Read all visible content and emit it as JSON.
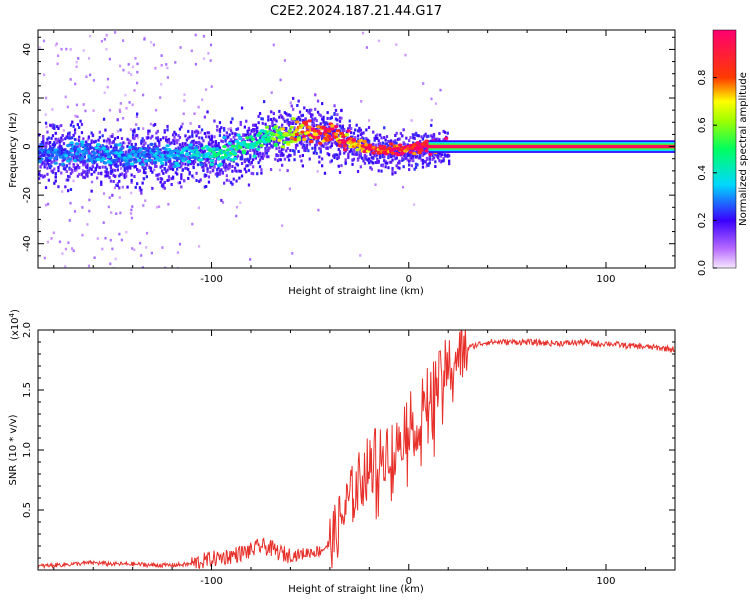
{
  "title": "C2E2.2024.187.21.44.G17",
  "chart_data": [
    {
      "type": "heatmap",
      "title": "C2E2.2024.187.21.44.G17",
      "xlabel": "Height of straight line (km)",
      "ylabel": "Frequency (Hz)",
      "xlim": [
        -188,
        135
      ],
      "ylim": [
        -50,
        48
      ],
      "x_ticks": [
        -100,
        0,
        100
      ],
      "y_ticks": [
        -40,
        -20,
        0,
        20,
        40
      ],
      "colorbar": {
        "label": "Normalized spectral amplitude",
        "range": [
          0.0,
          1.0
        ],
        "ticks": [
          0.0,
          0.2,
          0.4,
          0.6,
          0.8
        ]
      },
      "ridge": {
        "x": [
          -188,
          -170,
          -150,
          -130,
          -110,
          -100,
          -90,
          -80,
          -70,
          -60,
          -50,
          -40,
          -30,
          -20,
          -10,
          0,
          10,
          20,
          60,
          100,
          135
        ],
        "frequency": [
          -3,
          -2,
          -4,
          -3,
          -3,
          -3,
          -2,
          1,
          4,
          6,
          7,
          6,
          2,
          -1,
          -2,
          -1,
          0,
          0,
          0,
          0,
          0
        ],
        "amplitude": [
          0.25,
          0.3,
          0.3,
          0.3,
          0.35,
          0.4,
          0.45,
          0.45,
          0.5,
          0.7,
          0.85,
          0.9,
          0.85,
          0.9,
          0.95,
          0.95,
          0.97,
          0.98,
          0.98,
          0.98,
          0.98
        ]
      }
    },
    {
      "type": "line",
      "xlabel": "Height of straight line (km)",
      "ylabel": "SNR (10 * v/v)",
      "y_multiplier_label": "(x10",
      "y_multiplier_exp": "4",
      "y_multiplier_close": ")",
      "xlim": [
        -188,
        135
      ],
      "ylim": [
        0,
        20000
      ],
      "x_ticks": [
        -100,
        0,
        100
      ],
      "y_ticks": [
        5000,
        10000,
        15000,
        20000
      ],
      "y_tick_labels": [
        "0.5",
        "1.0",
        "1.5",
        "2.0"
      ],
      "color": "#e8302a",
      "series": [
        {
          "name": "SNR",
          "x": [
            -188,
            -180,
            -170,
            -160,
            -150,
            -140,
            -130,
            -120,
            -110,
            -100,
            -90,
            -80,
            -75,
            -70,
            -65,
            -60,
            -55,
            -50,
            -45,
            -40,
            -37,
            -35,
            -32,
            -30,
            -27,
            -25,
            -22,
            -20,
            -17,
            -15,
            -12,
            -10,
            -7,
            -5,
            -2,
            0,
            3,
            5,
            8,
            10,
            12,
            15,
            18,
            20,
            23,
            25,
            28,
            30,
            35,
            40,
            50,
            60,
            70,
            80,
            90,
            95,
            100,
            110,
            120,
            135
          ],
          "y": [
            300,
            400,
            500,
            600,
            500,
            500,
            400,
            400,
            500,
            900,
            1200,
            1600,
            2000,
            1800,
            1400,
            1200,
            1300,
            1500,
            1600,
            2200,
            3000,
            4000,
            5000,
            6000,
            6500,
            7500,
            8000,
            9000,
            9500,
            9000,
            10000,
            10500,
            9500,
            11000,
            12000,
            12500,
            12000,
            13000,
            14000,
            14500,
            15000,
            15500,
            16500,
            17000,
            17500,
            17800,
            18200,
            18500,
            18800,
            19000,
            19000,
            19000,
            18900,
            18900,
            19000,
            18800,
            18900,
            18700,
            18600,
            18400
          ]
        }
      ]
    }
  ],
  "colors": {
    "line": "#e8302a",
    "colormap": [
      "#f8f0ff",
      "#b060ff",
      "#3000ff",
      "#00c8ff",
      "#00ff40",
      "#ffff00",
      "#ff3000",
      "#ff0070"
    ]
  }
}
